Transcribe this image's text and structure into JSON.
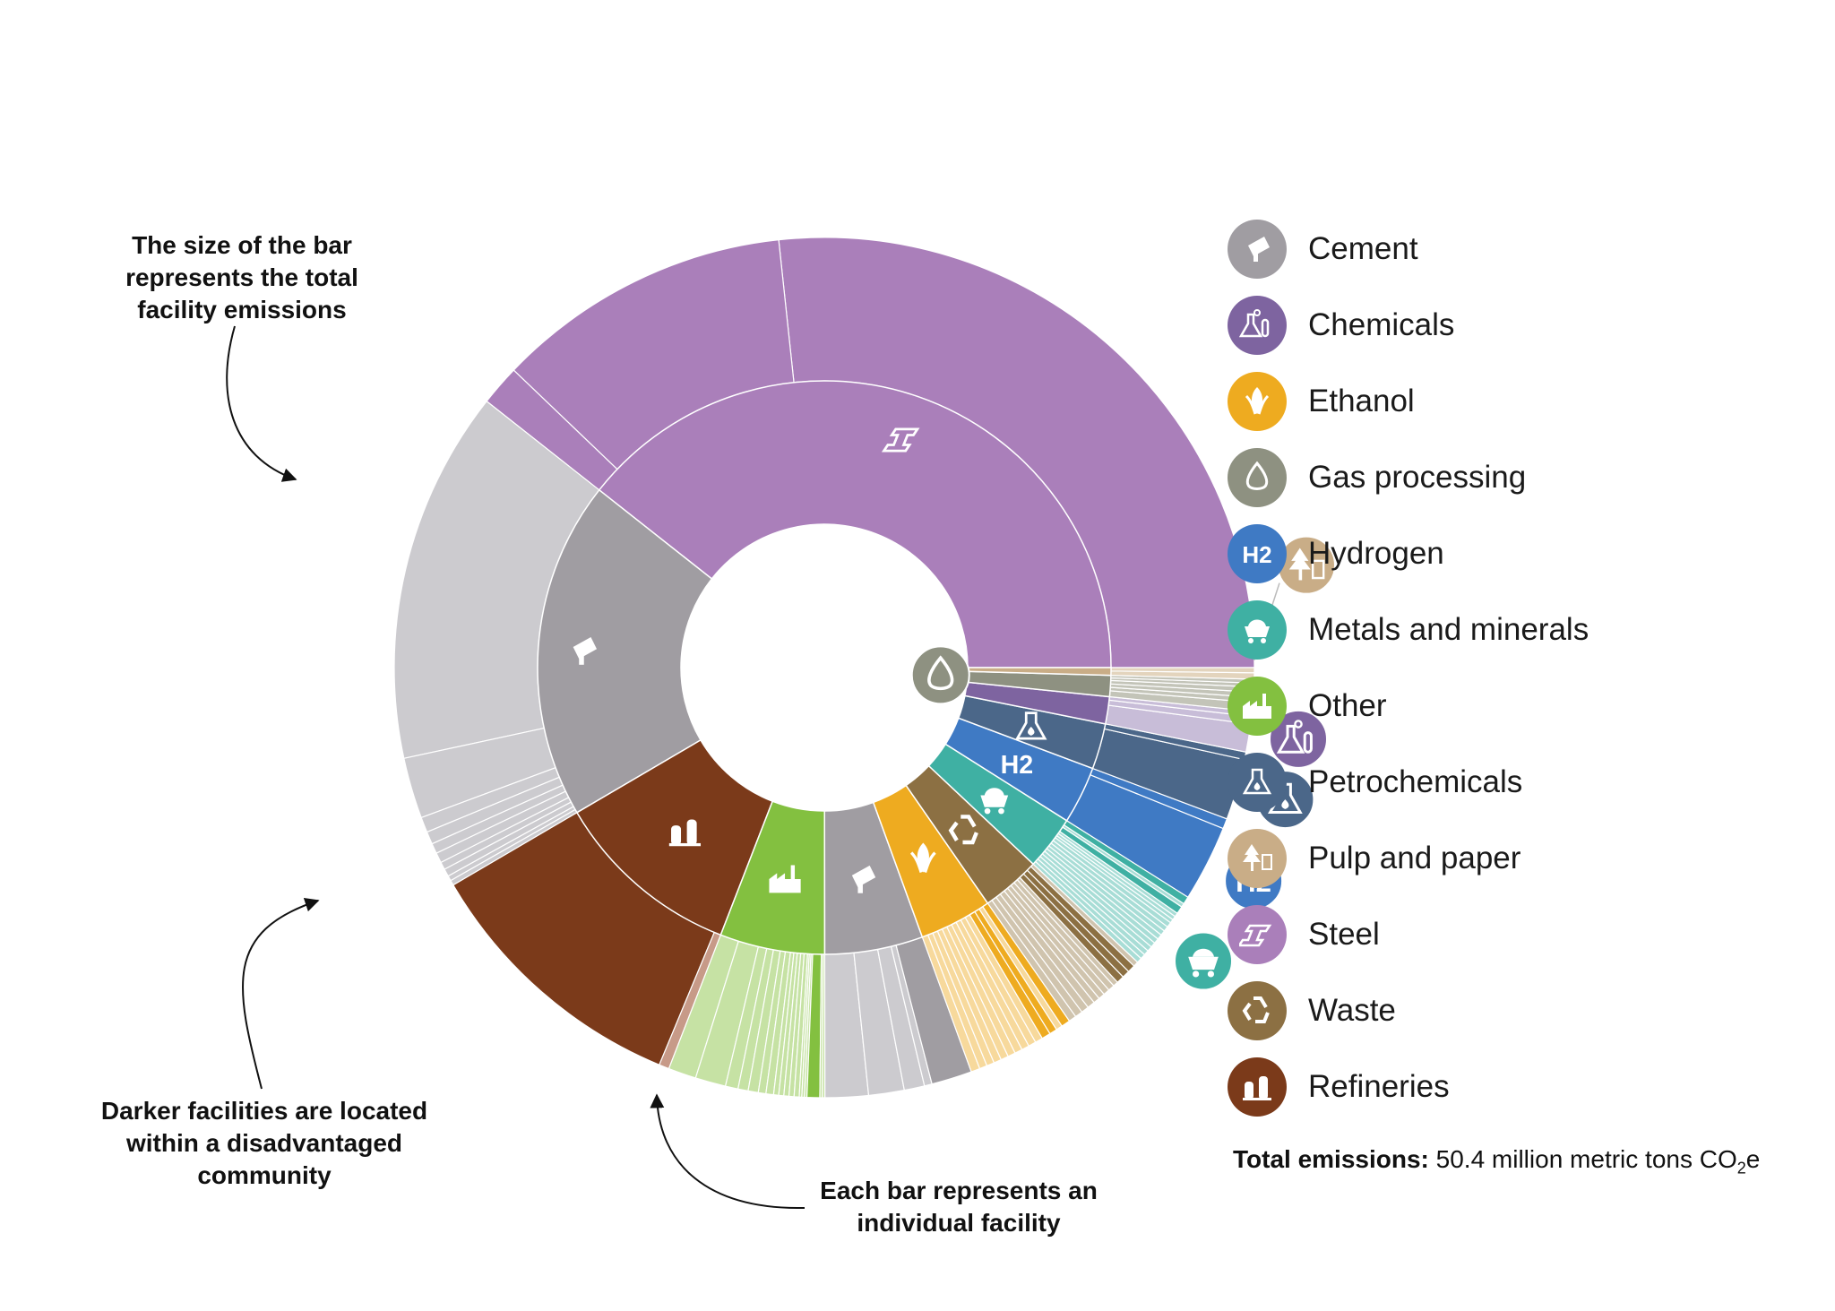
{
  "legend": {
    "items": [
      {
        "key": "cement",
        "label": "Cement",
        "color": "#a09da2",
        "icon": "cement-icon"
      },
      {
        "key": "chemicals",
        "label": "Chemicals",
        "color": "#7e64a0",
        "icon": "chemicals-icon"
      },
      {
        "key": "ethanol",
        "label": "Ethanol",
        "color": "#eeab20",
        "icon": "ethanol-icon"
      },
      {
        "key": "gas",
        "label": "Gas processing",
        "color": "#8e9181",
        "icon": "gas-processing-icon"
      },
      {
        "key": "hydrogen",
        "label": "Hydrogen",
        "color": "#3f7ac4",
        "icon": "hydrogen-icon"
      },
      {
        "key": "metals",
        "label": "Metals and minerals",
        "color": "#3fb0a3",
        "icon": "metals-minerals-icon"
      },
      {
        "key": "other",
        "label": "Other",
        "color": "#83c040",
        "icon": "other-icon"
      },
      {
        "key": "petro",
        "label": "Petrochemicals",
        "color": "#4b6789",
        "icon": "petrochemicals-icon"
      },
      {
        "key": "pulp",
        "label": "Pulp and paper",
        "color": "#c9ad87",
        "icon": "pulp-paper-icon"
      },
      {
        "key": "steel",
        "label": "Steel",
        "color": "#aa7fba",
        "icon": "steel-icon"
      },
      {
        "key": "waste",
        "label": "Waste",
        "color": "#8c7043",
        "icon": "waste-icon"
      },
      {
        "key": "refineries",
        "label": "Refineries",
        "color": "#7b3a1a",
        "icon": "refineries-icon"
      }
    ]
  },
  "total": {
    "label": "Total emissions:",
    "value": " 50.4 million metric tons CO",
    "sub": "2",
    "unit": "e"
  },
  "annotations": {
    "size": "The size of the bar\nrepresents the total\nfacility emissions",
    "darker": "Darker facilities are located\nwithin a disadvantaged\ncommunity",
    "each": "Each bar represents an\nindividual facility"
  },
  "chart_data": {
    "type": "sunburst",
    "title": "",
    "unit": "share of total emissions (%)",
    "sectors": [
      {
        "key": "steel",
        "name": "Steel",
        "color": "#aa7fba",
        "light": "#aa7fba",
        "dark": "#aa7fba",
        "facilities": [
          {
            "v": 28.0,
            "dac": true
          },
          {
            "v": 11.7,
            "dac": true
          },
          {
            "v": 1.6,
            "dac": true
          }
        ]
      },
      {
        "key": "cement",
        "name": "Cement",
        "color": "#a09da2",
        "light": "#cccbcf",
        "dark": "#a09da2",
        "facilities": [
          {
            "v": 14.7,
            "dac": false
          },
          {
            "v": 2.4,
            "dac": false
          },
          {
            "v": 0.6,
            "dac": false
          },
          {
            "v": 0.5,
            "dac": false
          },
          {
            "v": 0.4,
            "dac": false
          },
          {
            "v": 0.4,
            "dac": false
          },
          {
            "v": 0.3,
            "dac": false
          },
          {
            "v": 0.3,
            "dac": false
          },
          {
            "v": 0.2,
            "dac": false
          },
          {
            "v": 0.2,
            "dac": false
          }
        ]
      },
      {
        "key": "refineries",
        "name": "Refineries",
        "color": "#7b3a1a",
        "light": "#c79a88",
        "dark": "#7b3a1a",
        "facilities": [
          {
            "v": 10.8,
            "dac": true
          },
          {
            "v": 0.4,
            "dac": false
          }
        ]
      },
      {
        "key": "other",
        "name": "Other",
        "color": "#83c040",
        "light": "#c6e2a4",
        "dark": "#83c040",
        "facilities": [
          {
            "v": 1.1,
            "dac": false
          },
          {
            "v": 1.2,
            "dac": false
          },
          {
            "v": 0.5,
            "dac": false
          },
          {
            "v": 0.4,
            "dac": false
          },
          {
            "v": 0.4,
            "dac": false
          },
          {
            "v": 0.3,
            "dac": false
          },
          {
            "v": 0.3,
            "dac": false
          },
          {
            "v": 0.2,
            "dac": false
          },
          {
            "v": 0.2,
            "dac": false
          },
          {
            "v": 0.2,
            "dac": false
          },
          {
            "v": 0.2,
            "dac": false
          },
          {
            "v": 0.2,
            "dac": false
          },
          {
            "v": 0.1,
            "dac": false
          },
          {
            "v": 0.1,
            "dac": false
          },
          {
            "v": 0.1,
            "dac": false
          },
          {
            "v": 0.5,
            "dac": true
          },
          {
            "v": 0.1,
            "dac": false
          },
          {
            "v": 0.1,
            "dac": false
          }
        ]
      },
      {
        "key": "cement2",
        "name": "Cement",
        "color": "#a09da2",
        "light": "#cccbcf",
        "dark": "#a09da2",
        "facilities": [
          {
            "v": 1.7,
            "dac": false
          },
          {
            "v": 1.4,
            "dac": false
          },
          {
            "v": 0.8,
            "dac": false
          },
          {
            "v": 0.3,
            "dac": false
          },
          {
            "v": 1.6,
            "dac": true
          }
        ]
      },
      {
        "key": "ethanol",
        "name": "Ethanol",
        "color": "#eeab20",
        "light": "#f7d99c",
        "dark": "#eeab20",
        "facilities": [
          {
            "v": 0.35,
            "dac": false
          },
          {
            "v": 0.3,
            "dac": false
          },
          {
            "v": 0.3,
            "dac": false
          },
          {
            "v": 0.3,
            "dac": false
          },
          {
            "v": 0.3,
            "dac": false
          },
          {
            "v": 0.3,
            "dac": false
          },
          {
            "v": 0.3,
            "dac": false
          },
          {
            "v": 0.3,
            "dac": false
          },
          {
            "v": 0.3,
            "dac": false
          },
          {
            "v": 0.3,
            "dac": false
          },
          {
            "v": 0.35,
            "dac": true
          },
          {
            "v": 0.3,
            "dac": true
          },
          {
            "v": 0.25,
            "dac": false
          },
          {
            "v": 0.35,
            "dac": true
          }
        ]
      },
      {
        "key": "waste",
        "name": "Waste",
        "color": "#8c7043",
        "light": "#d0c4ae",
        "dark": "#8c7043",
        "facilities": [
          {
            "v": 0.3,
            "dac": false
          },
          {
            "v": 0.3,
            "dac": false
          },
          {
            "v": 0.3,
            "dac": false
          },
          {
            "v": 0.3,
            "dac": false
          },
          {
            "v": 0.25,
            "dac": false
          },
          {
            "v": 0.25,
            "dac": false
          },
          {
            "v": 0.25,
            "dac": false
          },
          {
            "v": 0.25,
            "dac": false
          },
          {
            "v": 0.2,
            "dac": false
          },
          {
            "v": 0.3,
            "dac": true
          },
          {
            "v": 0.3,
            "dac": true
          },
          {
            "v": 0.3,
            "dac": true
          },
          {
            "v": 0.2,
            "dac": false
          }
        ]
      },
      {
        "key": "metals",
        "name": "Metals and minerals",
        "color": "#3fb0a3",
        "light": "#a8ddd6",
        "dark": "#3fb0a3",
        "facilities": [
          {
            "v": 0.2,
            "dac": false
          },
          {
            "v": 0.2,
            "dac": false
          },
          {
            "v": 0.2,
            "dac": false
          },
          {
            "v": 0.2,
            "dac": false
          },
          {
            "v": 0.2,
            "dac": false
          },
          {
            "v": 0.2,
            "dac": false
          },
          {
            "v": 0.2,
            "dac": false
          },
          {
            "v": 0.2,
            "dac": false
          },
          {
            "v": 0.2,
            "dac": false
          },
          {
            "v": 0.2,
            "dac": false
          },
          {
            "v": 0.15,
            "dac": false
          },
          {
            "v": 0.15,
            "dac": false
          },
          {
            "v": 0.15,
            "dac": false
          },
          {
            "v": 0.3,
            "dac": true
          },
          {
            "v": 0.15,
            "dac": false
          },
          {
            "v": 0.3,
            "dac": true
          }
        ]
      },
      {
        "key": "hydrogen",
        "name": "Hydrogen",
        "color": "#3f7ac4",
        "light": "#3f7ac4",
        "dark": "#3f7ac4",
        "facilities": [
          {
            "v": 3.0,
            "dac": true
          },
          {
            "v": 0.4,
            "dac": true
          }
        ]
      },
      {
        "key": "petro",
        "name": "Petrochemicals",
        "color": "#4b6789",
        "light": "#4b6789",
        "dark": "#4b6789",
        "facilities": [
          {
            "v": 2.4,
            "dac": true
          },
          {
            "v": 0.3,
            "dac": true
          }
        ]
      },
      {
        "key": "chemicals",
        "name": "Chemicals",
        "color": "#7e64a0",
        "light": "#c8bdd8",
        "dark": "#7e64a0",
        "facilities": [
          {
            "v": 1.1,
            "dac": false
          },
          {
            "v": 0.3,
            "dac": false
          },
          {
            "v": 0.2,
            "dac": false
          }
        ]
      },
      {
        "key": "gas",
        "name": "Gas processing",
        "color": "#8e9181",
        "light": "#c3c4b8",
        "dark": "#8e9181",
        "facilities": [
          {
            "v": 0.35,
            "dac": false
          },
          {
            "v": 0.2,
            "dac": false
          },
          {
            "v": 0.2,
            "dac": false
          },
          {
            "v": 0.2,
            "dac": false
          },
          {
            "v": 0.15,
            "dac": false
          },
          {
            "v": 0.15,
            "dac": false
          }
        ]
      },
      {
        "key": "pulp",
        "name": "Pulp and paper",
        "color": "#c9ad87",
        "light": "#e3d4bd",
        "dark": "#c9ad87",
        "facilities": [
          {
            "v": 0.25,
            "dac": false
          },
          {
            "v": 0.2,
            "dac": false
          }
        ]
      }
    ]
  }
}
